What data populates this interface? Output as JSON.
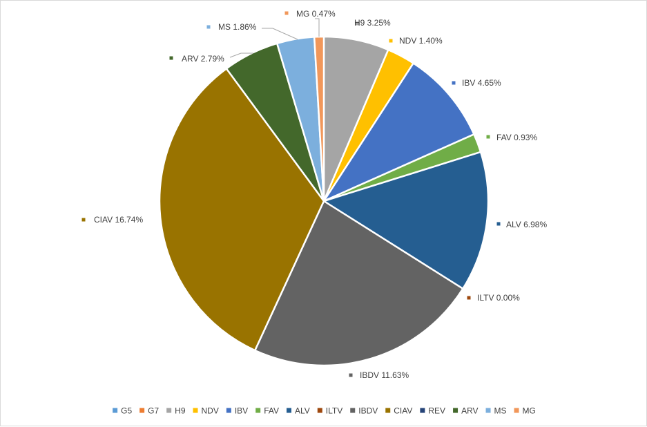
{
  "chart_data": {
    "type": "pie",
    "title": "",
    "legend_position": "bottom",
    "series": [
      {
        "name": "G5",
        "value": 0.0,
        "label": "",
        "color": "#5b9bd5"
      },
      {
        "name": "G7",
        "value": 0.0,
        "label": "",
        "color": "#ed7d31"
      },
      {
        "name": "H9",
        "value": 3.25,
        "label": "H9 3.25%",
        "color": "#a5a5a5"
      },
      {
        "name": "NDV",
        "value": 1.4,
        "label": "NDV 1.40%",
        "color": "#ffc000"
      },
      {
        "name": "IBV",
        "value": 4.65,
        "label": "IBV 4.65%",
        "color": "#4472c4"
      },
      {
        "name": "FAV",
        "value": 0.93,
        "label": "FAV 0.93%",
        "color": "#70ad47"
      },
      {
        "name": "ALV",
        "value": 6.98,
        "label": "ALV 6.98%",
        "color": "#255e91"
      },
      {
        "name": "ILTV",
        "value": 0.0,
        "label": "ILTV 0.00%",
        "color": "#9e480e"
      },
      {
        "name": "IBDV",
        "value": 11.63,
        "label": "IBDV 11.63%",
        "color": "#636363"
      },
      {
        "name": "CIAV",
        "value": 16.74,
        "label": "CIAV 16.74%",
        "color": "#997300"
      },
      {
        "name": "REV",
        "value": 0.0,
        "label": "",
        "color": "#264478"
      },
      {
        "name": "ARV",
        "value": 2.79,
        "label": "ARV 2.79%",
        "color": "#43682b"
      },
      {
        "name": "MS",
        "value": 1.86,
        "label": "MS 1.86%",
        "color": "#7cafdd"
      },
      {
        "name": "MG",
        "value": 0.47,
        "label": "MG 0.47%",
        "color": "#f1975a"
      }
    ]
  }
}
